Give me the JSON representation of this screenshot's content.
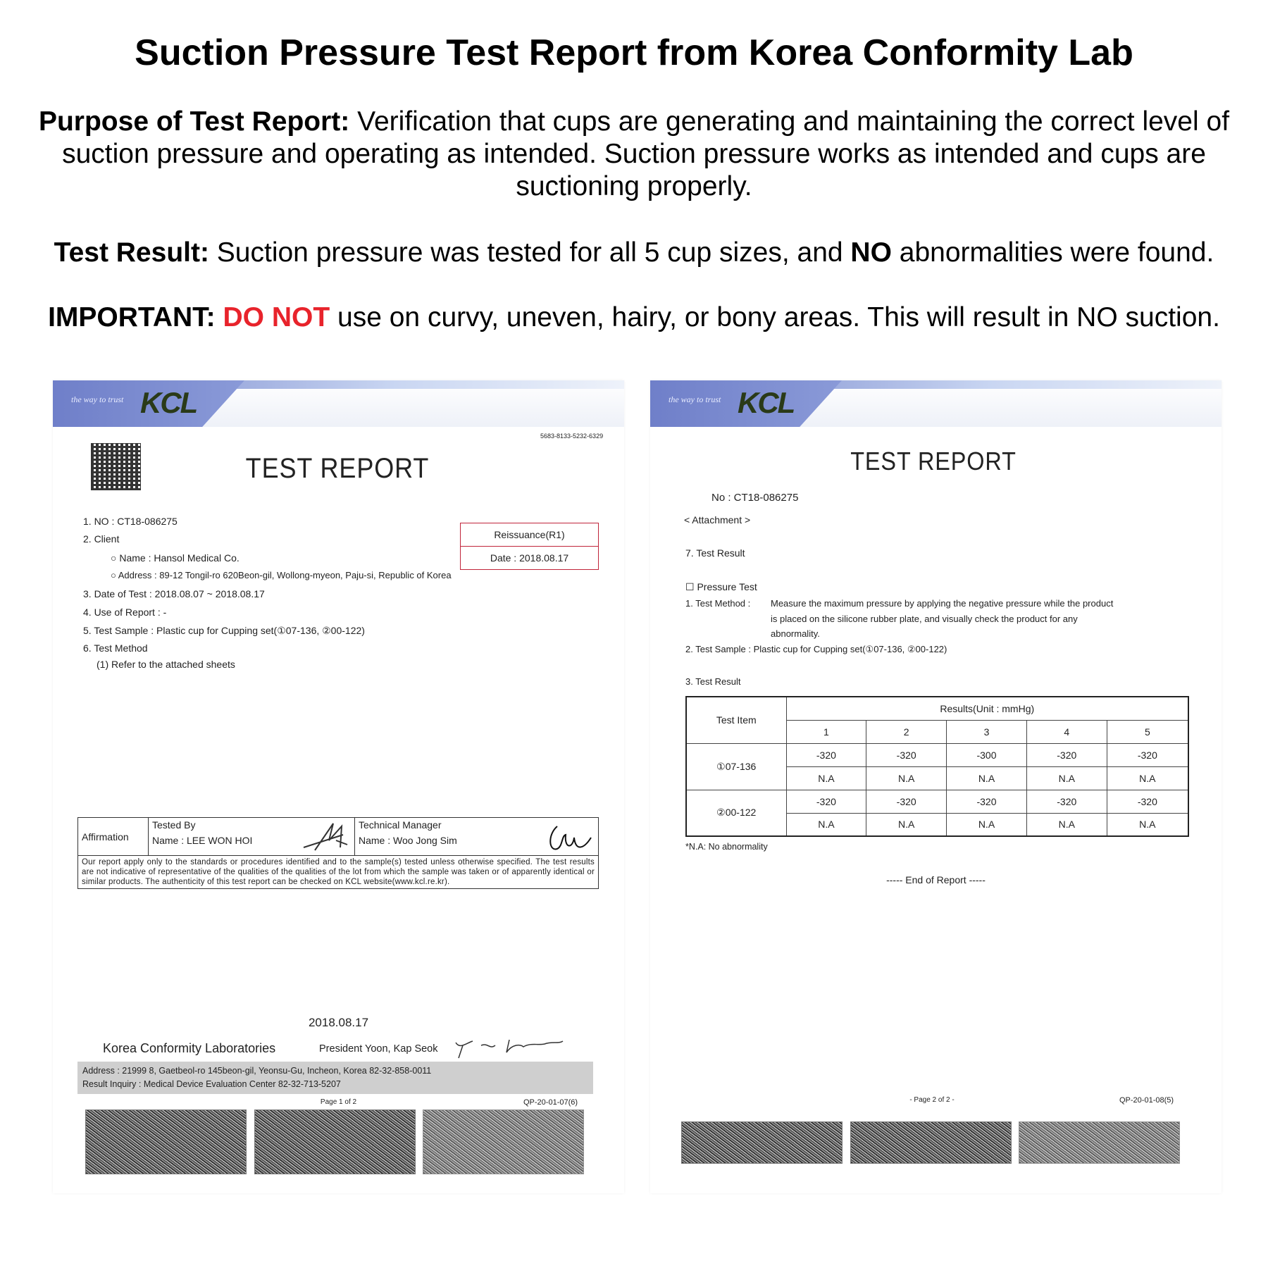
{
  "header": {
    "title": "Suction Pressure Test Report from Korea Conformity Lab",
    "purpose_label": "Purpose of Test Report:",
    "purpose_text": " Verification that cups are generating and maintaining the correct level of suction pressure and operating as intended. Suction pressure works as intended and cups are suctioning properly.",
    "result_label": "Test Result:",
    "result_text_1": " Suction pressure was tested for all 5 cup sizes, and ",
    "result_no": "NO",
    "result_text_2": " abnormalities were found.",
    "important_label": "IMPORTANT:",
    "important_red": "DO NOT",
    "important_text": " use on curvy, uneven, hairy, or bony areas. This will result in NO suction.",
    "accent_red": "#e8232b"
  },
  "logo": {
    "tagline": "the way to trust",
    "brand": "KCL"
  },
  "page1": {
    "serial": "5683-8133-5232-6329",
    "title": "TEST REPORT",
    "items": [
      "1. NO :    CT18-086275",
      "2. Client",
      "○ Name :    Hansol Medical Co.",
      "○ Address :   89-12 Tongil-ro 620Beon-gil, Wollong-myeon, Paju-si, Republic of Korea",
      "3. Date of Test :    2018.08.07 ~ 2018.08.17",
      "4. Use of Report :   -",
      "5. Test Sample :   Plastic cup for Cupping set(①07-136, ②00-122)",
      "6. Test Method",
      "(1) Refer to the attached sheets"
    ],
    "reissuance": "Reissuance(R1)",
    "reissue_date": "Date : 2018.08.17",
    "affirmation": "Affirmation",
    "tested_by": "Tested By",
    "tester_name": "Name :  LEE WON HOI",
    "tech_manager": "Technical Manager",
    "manager_name": "Name :  Woo Jong Sim",
    "disclaimer": "Our report apply only to the standards or procedures identified and to the sample(s) tested unless otherwise specified. The test results are not indicative of representative of the qualities of the qualities of the lot from which the sample was taken or of apparently identical or similar products. The authenticity of this test report can be checked on KCL website(www.kcl.re.kr).",
    "date": "2018.08.17",
    "org": "Korea Conformity Laboratories",
    "president": "President  Yoon, Kap Seok",
    "address": "Address : 21999  8, Gaetbeol-ro 145beon-gil, Yeonsu-Gu, Incheon, Korea  82-32-858-0011",
    "inquiry": "Result Inquiry : Medical Device Evaluation Center 82-32-713-5207",
    "page": "Page 1 of 2",
    "form": "QP-20-01-07(6)"
  },
  "page2": {
    "title": "TEST REPORT",
    "no": "No : CT18-086275",
    "attachment": "< Attachment >",
    "section": "7. Test Result",
    "pressure_test": "☐ Pressure Test",
    "method_label": "1. Test Method : ",
    "method_lines": [
      "Measure the maximum pressure by applying the negative pressure while the product",
      "is placed on the silicone rubber plate, and visually check the product for any",
      "abnormality."
    ],
    "sample": "2. Test Sample : Plastic cup for Cupping set(①07-136, ②00-122)",
    "result_heading": "3. Test Result",
    "table": {
      "item_header": "Test Item",
      "results_header": "Results(Unit : mmHg)",
      "columns": [
        "1",
        "2",
        "3",
        "4",
        "5"
      ],
      "rows": [
        {
          "item": "①07-136",
          "values": [
            "-320",
            "-320",
            "-300",
            "-320",
            "-320"
          ],
          "status": [
            "N.A",
            "N.A",
            "N.A",
            "N.A",
            "N.A"
          ]
        },
        {
          "item": "②00-122",
          "values": [
            "-320",
            "-320",
            "-320",
            "-320",
            "-320"
          ],
          "status": [
            "N.A",
            "N.A",
            "N.A",
            "N.A",
            "N.A"
          ]
        }
      ]
    },
    "note": "*N.A: No abnormality",
    "end": "----- End of Report -----",
    "page": "- Page 2 of 2 -",
    "form": "QP-20-01-08(5)"
  }
}
